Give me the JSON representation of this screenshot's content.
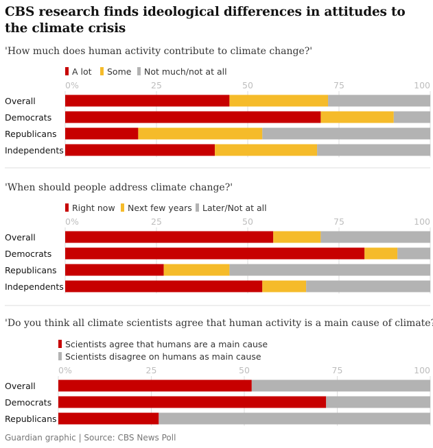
{
  "title": "CBS research finds ideological differences in attitudes to the climate crisis",
  "source": "Guardian graphic | Source: CBS News Poll",
  "colors": {
    "red": "#c70000",
    "yellow": "#f5bb2a",
    "grey": "#b3b3b3",
    "gridline": "#dcdcdc",
    "divider": "#dcdcdc"
  },
  "chart_data": [
    {
      "type": "bar",
      "orientation": "horizontal",
      "stacked": true,
      "title": "'How much does human activity contribute to climate change?'",
      "categories": [
        "Overall",
        "Democrats",
        "Republicans",
        "Independents"
      ],
      "series": [
        {
          "name": "A lot",
          "color": "#c70000",
          "values": [
            45,
            70,
            20,
            41
          ]
        },
        {
          "name": "Some",
          "color": "#f5bb2a",
          "values": [
            27,
            20,
            34,
            28
          ]
        },
        {
          "name": "Not much/not at all",
          "color": "#b3b3b3",
          "values": [
            28,
            10,
            46,
            31
          ]
        }
      ],
      "ticks": [
        "0%",
        "25",
        "50",
        "75",
        "100"
      ],
      "xlim": [
        0,
        100
      ],
      "legend_position": "top-left"
    },
    {
      "type": "bar",
      "orientation": "horizontal",
      "stacked": true,
      "title": "'When should people address climate change?'",
      "categories": [
        "Overall",
        "Democrats",
        "Republicans",
        "Independents"
      ],
      "series": [
        {
          "name": "Right now",
          "color": "#c70000",
          "values": [
            57,
            82,
            27,
            54
          ]
        },
        {
          "name": "Next few years",
          "color": "#f5bb2a",
          "values": [
            13,
            9,
            18,
            12
          ]
        },
        {
          "name": "Later/Not at all",
          "color": "#b3b3b3",
          "values": [
            30,
            9,
            55,
            34
          ]
        }
      ],
      "ticks": [
        "0%",
        "25",
        "50",
        "75",
        "100"
      ],
      "xlim": [
        0,
        100
      ],
      "legend_position": "top-left"
    },
    {
      "type": "bar",
      "orientation": "horizontal",
      "stacked": true,
      "title": "'Do you think all climate scientists agree that human activity is a main cause of climate?",
      "categories": [
        "Overall",
        "Democrats",
        "Republicans"
      ],
      "series": [
        {
          "name": "Scientists agree that humans are a main cause",
          "color": "#c70000",
          "values": [
            52,
            72,
            27
          ]
        },
        {
          "name": "Scientists disagree on humans as main cause",
          "color": "#b3b3b3",
          "values": [
            48,
            28,
            73
          ]
        }
      ],
      "ticks": [
        "0%",
        "25",
        "50",
        "75",
        "100"
      ],
      "xlim": [
        0,
        100
      ],
      "legend_position": "top-left"
    }
  ]
}
